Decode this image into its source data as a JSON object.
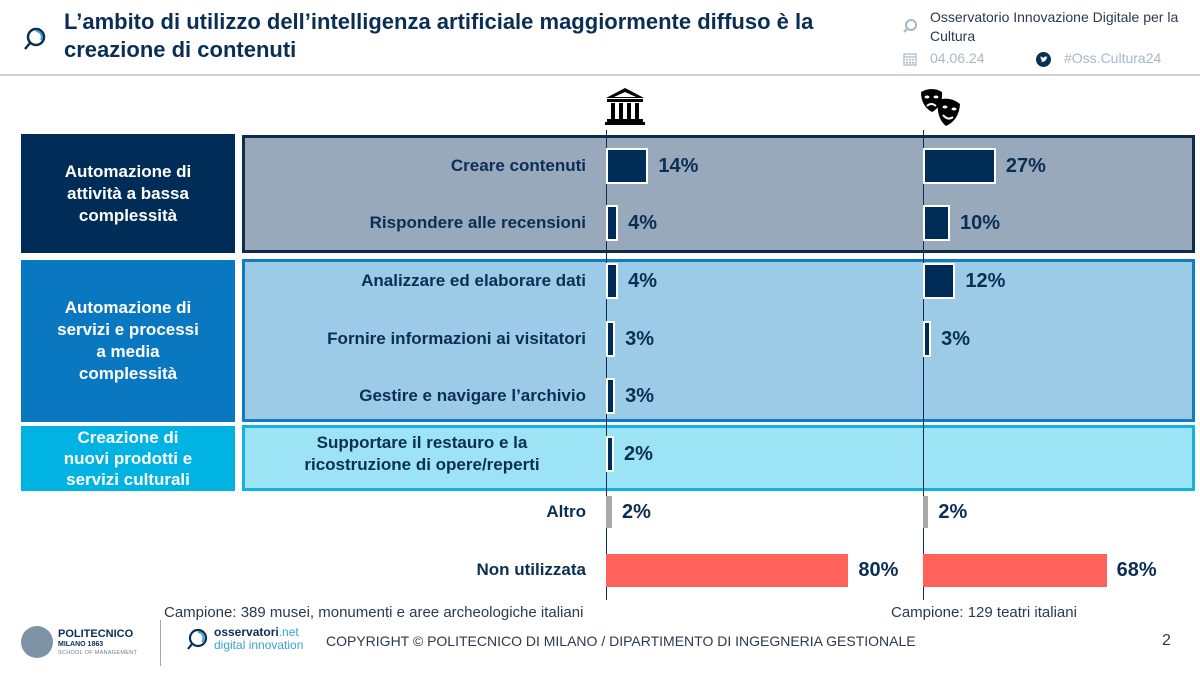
{
  "header": {
    "title": "L’ambito di utilizzo dell’intelligenza artificiale maggiormente diffuso è la creazione di contenuti",
    "observatory": "Osservatorio Innovazione Digitale per la Cultura",
    "date": "04.06.24",
    "hashtag": "#Oss.Cultura24",
    "icons": [
      "magnifier-logo-icon",
      "calendar-icon",
      "twitter-icon"
    ]
  },
  "columns": [
    {
      "name": "Musei, monumenti e aree archeologiche",
      "icon": "museum-icon"
    },
    {
      "name": "Teatri",
      "icon": "theatre-masks-icon"
    }
  ],
  "categories": [
    {
      "label": "Automazione di attività a bassa complessità",
      "lines": [
        "Automazione di",
        "attività a bassa",
        "complessità"
      ],
      "color": "#002d57"
    },
    {
      "label": "Automazione di servizi e processi a media complessità",
      "lines": [
        "Automazione di",
        "servizi e processi",
        "a media",
        "complessità"
      ],
      "color": "#0a78c0"
    },
    {
      "label": "Creazione di nuovi prodotti e servizi culturali",
      "lines": [
        "Creazione di",
        "nuovi prodotti e",
        "servizi culturali"
      ],
      "color": "#00b3e3"
    }
  ],
  "chart_data": {
    "type": "bar",
    "orientation": "horizontal",
    "title": "L’ambito di utilizzo dell’intelligenza artificiale maggiormente diffuso è la creazione di contenuti",
    "categories": [
      "Creare contenuti",
      "Rispondere alle recensioni",
      "Analizzare ed elaborare dati",
      "Fornire informazioni ai visitatori",
      "Gestire e navigare l’archivio",
      "Supportare il restauro e la ricostruzione di opere/reperti",
      "Altro",
      "Non utilizzata"
    ],
    "category_labels_lines": [
      [
        "Creare contenuti"
      ],
      [
        "Rispondere alle recensioni"
      ],
      [
        "Analizzare ed elaborare dati"
      ],
      [
        "Fornire informazioni ai visitatori"
      ],
      [
        "Gestire e navigare l’archivio"
      ],
      [
        "Supportare il restauro e la",
        "ricostruzione di opere/reperti"
      ],
      [
        "Altro"
      ],
      [
        "Non utilizzata"
      ]
    ],
    "series": [
      {
        "name": "Musei, monumenti e aree archeologiche",
        "values": [
          14,
          4,
          4,
          3,
          3,
          2,
          2,
          80
        ]
      },
      {
        "name": "Teatri",
        "values": [
          27,
          10,
          12,
          3,
          null,
          null,
          2,
          68
        ]
      }
    ],
    "value_labels": [
      [
        "14%",
        "4%",
        "4%",
        "3%",
        "3%",
        "2%",
        "2%",
        "80%"
      ],
      [
        "27%",
        "10%",
        "12%",
        "3%",
        "",
        "",
        "2%",
        "68%"
      ]
    ],
    "bar_colors": {
      "default": "#002d57",
      "Altro": "#a9a9a9",
      "Non utilizzata": "#fe625a"
    },
    "unit": "%",
    "xlim": [
      0,
      100
    ],
    "grid": false,
    "legend": "icons above columns"
  },
  "footer": {
    "sample_museums": "Campione: 389 musei, monumenti e aree archeologiche italiani",
    "sample_theatres": "Campione: 129 teatri italiani",
    "polimi_name": "POLITECNICO",
    "polimi_sub1": "MILANO 1863",
    "polimi_sub2": "SCHOOL OF MANAGEMENT",
    "osn_name": "osservatori",
    "osn_net": ".net",
    "osn_sub": "digital innovation",
    "copyright": "COPYRIGHT © POLITECNICO DI MILANO / DIPARTIMENTO DI INGEGNERIA GESTIONALE",
    "page_number": "2"
  }
}
